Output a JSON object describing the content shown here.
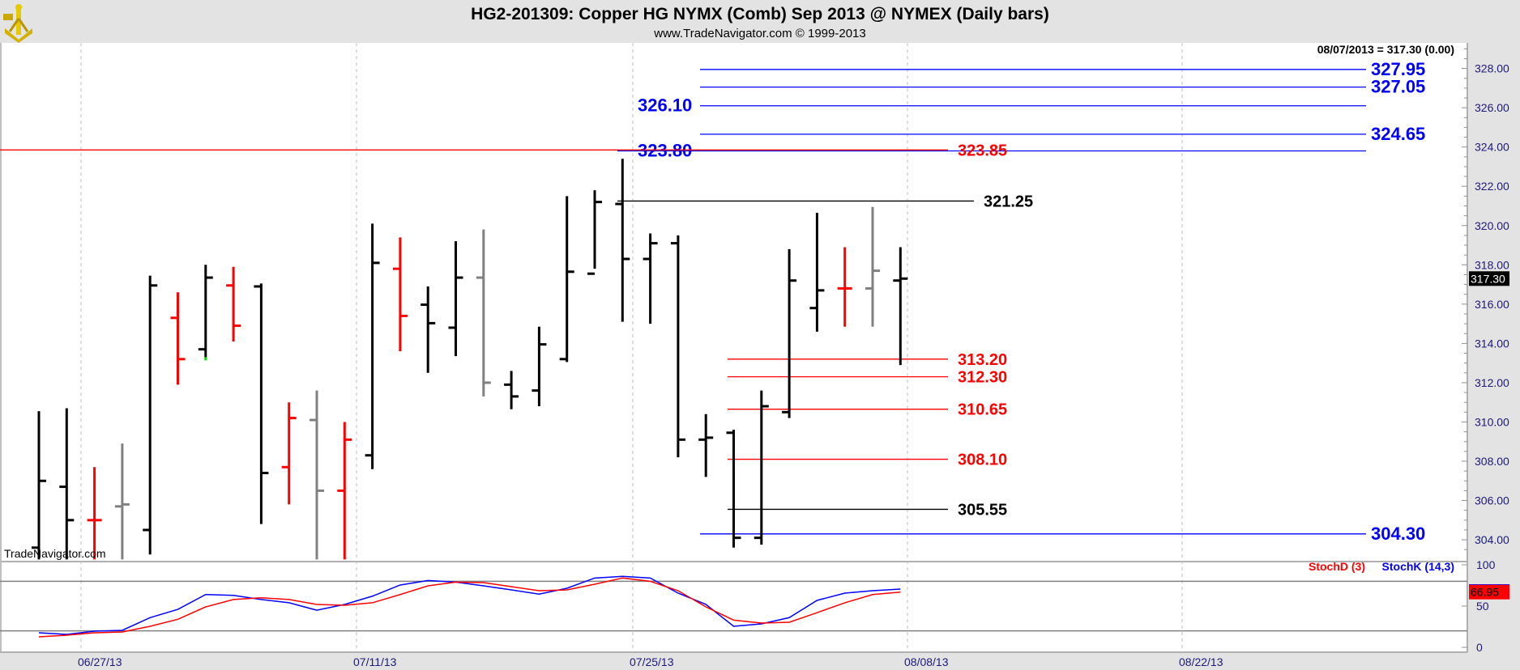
{
  "header": {
    "title": "HG2-201309:  Copper HG NYMX (Comb) Sep 2013 @ NYMEX  (Daily bars)",
    "subtitle": "www.TradeNavigator.com © 1999-2013",
    "logo": "sextant-logo"
  },
  "readout": "08/07/2013 = 317.30 (0.00)",
  "watermark": "TradeNavigator.com",
  "colors": {
    "up": "#000000",
    "down": "#ff0000",
    "neutral": "#808080",
    "stoch_k": "#0000ff",
    "stoch_d": "#ff0000",
    "panel_bg": "#e3e3e3",
    "axis_text": "#1a1a80"
  },
  "chart_data": [
    {
      "type": "ohlc",
      "title": "HG2-201309:  Copper HG NYMX (Comb) Sep 2013 @ NYMEX  (Daily bars)",
      "ylim": [
        303,
        329
      ],
      "y_ticks": [
        "328.00",
        "326.00",
        "324.00",
        "322.00",
        "320.00",
        "318.00",
        "316.00",
        "314.00",
        "312.00",
        "310.00",
        "308.00",
        "306.00",
        "304.00"
      ],
      "x_ticks": [
        "06/27/13",
        "07/11/13",
        "07/25/13",
        "08/08/13",
        "08/22/13"
      ],
      "last_price": "317.30",
      "bars": [
        {
          "o": 303.6,
          "h": 310.55,
          "l": 303.0,
          "c": 307.0,
          "color": "black"
        },
        {
          "o": 306.7,
          "h": 310.7,
          "l": 303.0,
          "c": 305.0,
          "color": "black"
        },
        {
          "o": 305.0,
          "h": 307.7,
          "l": 303.0,
          "c": 305.0,
          "color": "red"
        },
        {
          "o": 305.7,
          "h": 308.9,
          "l": 303.0,
          "c": 305.8,
          "color": "gray"
        },
        {
          "o": 304.5,
          "h": 317.45,
          "l": 303.25,
          "c": 316.95,
          "color": "black"
        },
        {
          "o": 315.3,
          "h": 316.6,
          "l": 311.9,
          "c": 313.2,
          "color": "red"
        },
        {
          "o": 313.7,
          "h": 318.0,
          "l": 313.3,
          "c": 317.35,
          "color": "black",
          "marker": "green"
        },
        {
          "o": 316.95,
          "h": 317.9,
          "l": 314.1,
          "c": 314.9,
          "color": "red"
        },
        {
          "o": 316.9,
          "h": 317.05,
          "l": 304.8,
          "c": 307.4,
          "color": "black"
        },
        {
          "o": 307.7,
          "h": 311.0,
          "l": 305.8,
          "c": 310.2,
          "color": "red"
        },
        {
          "o": 310.1,
          "h": 311.6,
          "l": 303.0,
          "c": 306.5,
          "color": "gray"
        },
        {
          "o": 306.5,
          "h": 310.0,
          "l": 303.0,
          "c": 309.1,
          "color": "red"
        },
        {
          "o": 308.3,
          "h": 320.1,
          "l": 307.6,
          "c": 318.1,
          "color": "black"
        },
        {
          "o": 317.8,
          "h": 319.4,
          "l": 313.6,
          "c": 315.4,
          "color": "red"
        },
        {
          "o": 315.97,
          "h": 316.9,
          "l": 312.5,
          "c": 315.03,
          "color": "black"
        },
        {
          "o": 314.8,
          "h": 319.2,
          "l": 313.35,
          "c": 317.35,
          "color": "black"
        },
        {
          "o": 317.35,
          "h": 319.8,
          "l": 311.3,
          "c": 312.0,
          "color": "gray"
        },
        {
          "o": 311.9,
          "h": 312.6,
          "l": 310.65,
          "c": 311.3,
          "color": "black"
        },
        {
          "o": 311.6,
          "h": 314.85,
          "l": 310.8,
          "c": 313.95,
          "color": "black"
        },
        {
          "o": 313.2,
          "h": 321.5,
          "l": 313.05,
          "c": 317.65,
          "color": "black"
        },
        {
          "o": 317.55,
          "h": 321.8,
          "l": 317.8,
          "c": 321.2,
          "color": "black"
        },
        {
          "o": 321.1,
          "h": 323.4,
          "l": 315.1,
          "c": 318.3,
          "color": "black"
        },
        {
          "o": 318.3,
          "h": 319.6,
          "l": 315.0,
          "c": 319.1,
          "color": "black"
        },
        {
          "o": 319.1,
          "h": 319.5,
          "l": 308.2,
          "c": 309.1,
          "color": "black"
        },
        {
          "o": 309.1,
          "h": 310.4,
          "l": 307.2,
          "c": 309.2,
          "color": "black"
        },
        {
          "o": 309.45,
          "h": 309.6,
          "l": 303.6,
          "c": 304.1,
          "color": "black"
        },
        {
          "o": 304.1,
          "h": 311.6,
          "l": 303.75,
          "c": 310.8,
          "color": "black"
        },
        {
          "o": 310.5,
          "h": 318.8,
          "l": 310.2,
          "c": 317.2,
          "color": "black"
        },
        {
          "o": 315.8,
          "h": 320.65,
          "l": 314.6,
          "c": 316.7,
          "color": "black"
        },
        {
          "o": 316.8,
          "h": 318.9,
          "l": 314.85,
          "c": 316.8,
          "color": "red"
        },
        {
          "o": 316.8,
          "h": 320.95,
          "l": 314.85,
          "c": 317.7,
          "color": "gray"
        },
        {
          "o": 317.2,
          "h": 318.9,
          "l": 312.9,
          "c": 317.3,
          "color": "black"
        }
      ],
      "levels": [
        {
          "value": 327.95,
          "label": "327.95",
          "color": "#0000ff"
        },
        {
          "value": 327.05,
          "label": "327.05",
          "color": "#0000ff"
        },
        {
          "value": 326.1,
          "label": "326.10",
          "color": "#0000ff"
        },
        {
          "value": 324.65,
          "label": "324.65",
          "color": "#0000ff"
        },
        {
          "value": 323.8,
          "label": "323.80",
          "color": "#0000ff"
        },
        {
          "value": 323.85,
          "label": "323.85",
          "color": "#ff0000"
        },
        {
          "value": 321.25,
          "label": "321.25",
          "color": "#000000"
        },
        {
          "value": 313.2,
          "label": "313.20",
          "color": "#ff0000"
        },
        {
          "value": 312.3,
          "label": "312.30",
          "color": "#ff0000"
        },
        {
          "value": 310.65,
          "label": "310.65",
          "color": "#ff0000"
        },
        {
          "value": 308.1,
          "label": "308.10",
          "color": "#ff0000"
        },
        {
          "value": 305.55,
          "label": "305.55",
          "color": "#000000"
        },
        {
          "value": 304.3,
          "label": "304.30",
          "color": "#0000ff"
        }
      ]
    },
    {
      "type": "line",
      "ylim": [
        0,
        100
      ],
      "y_ticks": [
        "100",
        "50",
        "0"
      ],
      "reference_lines": [
        80,
        20
      ],
      "legend": [
        {
          "name": "StochD (3)",
          "color": "#ff0000"
        },
        {
          "name": "StochK (14,3)",
          "color": "#0000ff"
        }
      ],
      "legend_position": "top-right",
      "last_value": "66.95",
      "series": [
        {
          "name": "StochK (14,3)",
          "values": [
            17.6,
            15.7,
            19.6,
            20.6,
            36,
            46,
            64,
            63,
            58,
            54,
            45,
            52,
            62,
            75.5,
            81,
            79,
            74.5,
            69.6,
            64.5,
            71.6,
            84,
            86,
            84,
            65.7,
            52,
            25.5,
            28.4,
            36,
            56.9,
            65.7,
            68.6,
            70.6
          ]
        },
        {
          "name": "StochD (3)",
          "values": [
            12.7,
            14.7,
            17.6,
            18.6,
            25.5,
            34,
            49,
            58,
            60,
            58,
            52,
            51,
            54,
            64,
            74.5,
            79,
            78.4,
            73.5,
            68.6,
            69.6,
            76.5,
            84,
            80,
            68.6,
            49,
            33,
            29.4,
            30.4,
            42,
            54,
            64,
            66.95
          ]
        }
      ]
    }
  ]
}
